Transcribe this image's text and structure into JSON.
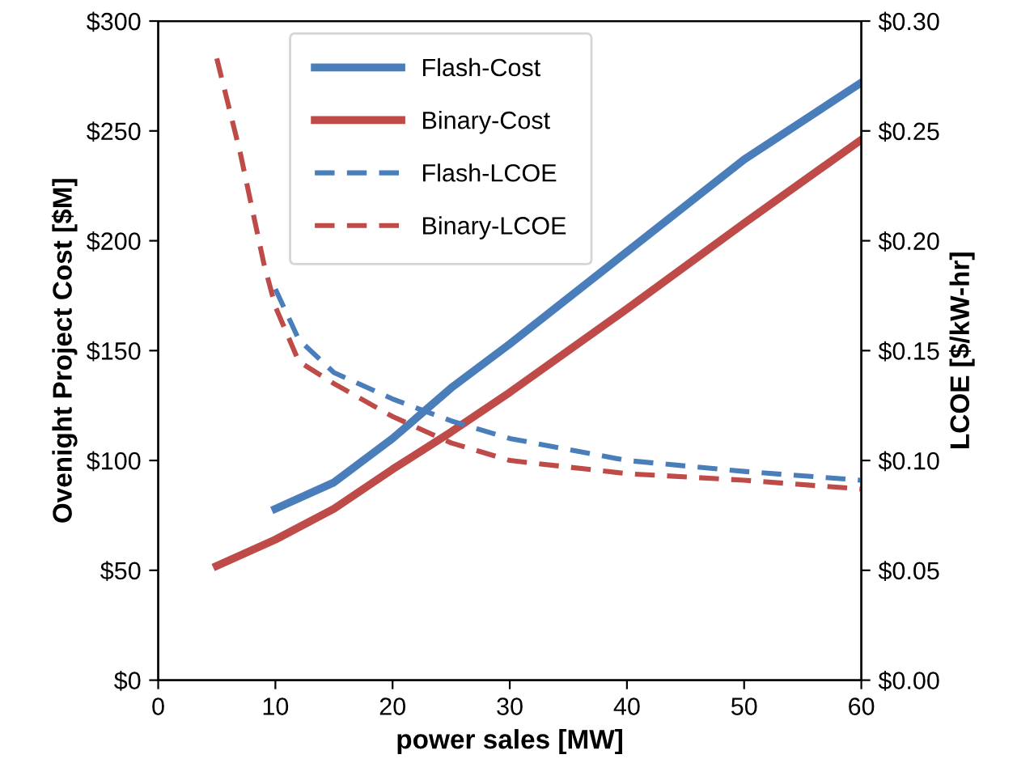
{
  "chart_data": {
    "type": "line",
    "xlabel": "power sales [MW]",
    "ylabel": "Ovenight Project Cost [$M]",
    "y2label": "LCOE [$/kW-hr]",
    "xlim": [
      0,
      60
    ],
    "xticks": [
      0,
      10,
      20,
      30,
      40,
      50,
      60
    ],
    "ylim": [
      0,
      300
    ],
    "yticks": [
      {
        "value": 0,
        "label": "$0"
      },
      {
        "value": 50,
        "label": "$50"
      },
      {
        "value": 100,
        "label": "$100"
      },
      {
        "value": 150,
        "label": "$150"
      },
      {
        "value": 200,
        "label": "$200"
      },
      {
        "value": 250,
        "label": "$250"
      },
      {
        "value": 300,
        "label": "$300"
      }
    ],
    "y2lim": [
      0,
      0.3
    ],
    "y2ticks": [
      {
        "value": 0,
        "label": "$0.00"
      },
      {
        "value": 0.05,
        "label": "$0.05"
      },
      {
        "value": 0.1,
        "label": "$0.10"
      },
      {
        "value": 0.15,
        "label": "$0.15"
      },
      {
        "value": 0.2,
        "label": "$0.20"
      },
      {
        "value": 0.25,
        "label": "$0.25"
      },
      {
        "value": 0.3,
        "label": "$0.30"
      }
    ],
    "grid": false,
    "legend": "top left",
    "marker": "none",
    "series": [
      {
        "name": "Flash-Cost",
        "color": "#4a7ebb",
        "line_style": "solid",
        "x": [
          10,
          15,
          20,
          25,
          30,
          40,
          50,
          60
        ],
        "values": [
          78,
          90,
          110,
          133,
          153,
          195,
          237,
          272
        ]
      },
      {
        "name": "Binary-Cost",
        "color": "#be4b48",
        "line_style": "solid",
        "x": [
          5,
          10,
          15,
          20,
          25,
          30,
          40,
          50,
          60
        ],
        "values": [
          52,
          64,
          78,
          96,
          113,
          131,
          169,
          208,
          246
        ]
      },
      {
        "name": "Flash-LCOE",
        "color": "#4a7ebb",
        "line_style": "dashed",
        "axis": "y2",
        "x": [
          10,
          12,
          15,
          20,
          25,
          30,
          40,
          50,
          60
        ],
        "values": [
          0.178,
          0.155,
          0.14,
          0.128,
          0.118,
          0.11,
          0.1,
          0.095,
          0.091
        ]
      },
      {
        "name": "Binary-LCOE",
        "color": "#be4b48",
        "line_style": "dashed",
        "axis": "y2",
        "x": [
          5,
          7,
          9,
          10,
          12,
          15,
          20,
          25,
          30,
          40,
          50,
          60
        ],
        "values": [
          0.283,
          0.24,
          0.19,
          0.17,
          0.145,
          0.135,
          0.12,
          0.108,
          0.1,
          0.094,
          0.091,
          0.087
        ]
      }
    ]
  }
}
